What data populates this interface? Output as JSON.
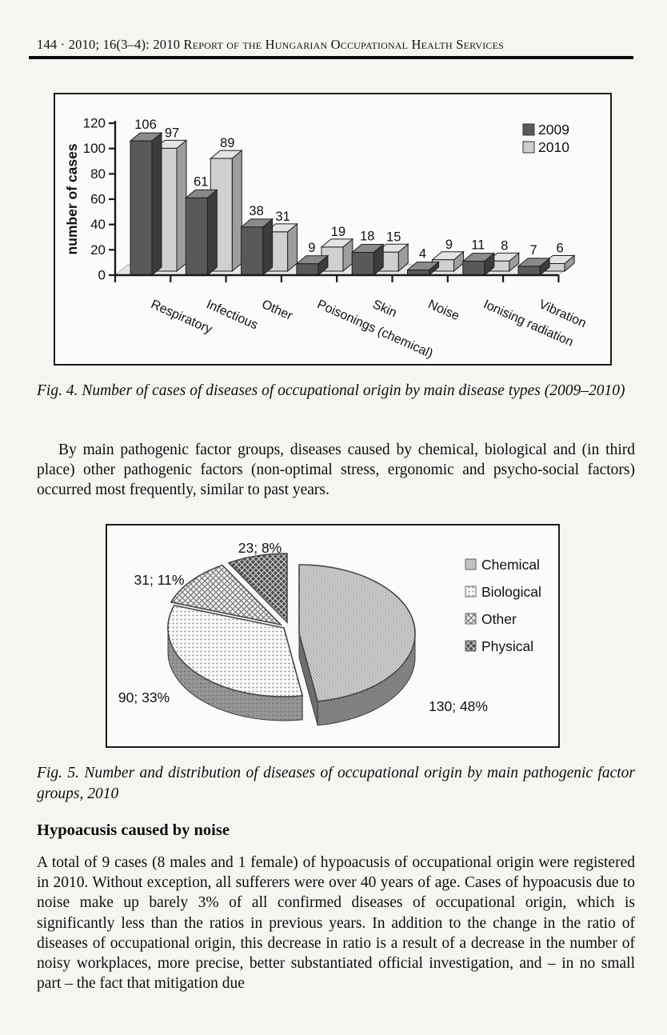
{
  "header": {
    "page_info": "144 · 2010; 16(3–4): ",
    "title": "2010 Report of the Hungarian Occupational Health Services"
  },
  "figure4": {
    "caption": "Fig. 4. Number of cases of diseases of occupational origin by main disease types (2009–2010)"
  },
  "paragraph1": "By main pathogenic factor groups, diseases caused by chemical, biological and (in third place) other pathogenic factors (non-optimal stress, ergonomic and psycho-social factors) occurred most frequently, similar to past years.",
  "figure5": {
    "caption": "Fig. 5. Number and distribution of diseases of occupational origin by main pathogenic factor groups, 2010"
  },
  "section": {
    "heading": "Hypoacusis caused by noise",
    "body": "A total of 9 cases (8 males and 1 female) of hypoacusis of occupational origin were registered in 2010. Without exception, all sufferers were over 40 years of age. Cases of hypoacusis due to noise make up barely 3% of all confirmed diseases of occupational origin, which is significantly less than the ratios in previous years. In addition to the change in the ratio of diseases of occupational origin, this decrease in ratio is a result of a decrease in the number of noisy workplaces, more precise, better substantiated official investigation, and – in no small part – the fact that mitigation due"
  },
  "chart_data": [
    {
      "type": "bar",
      "style": "3d-clustered-column",
      "categories": [
        "Respiratory",
        "Infectious",
        "Other",
        "Poisonings (chemical)",
        "Skin",
        "Noise",
        "Ionising radiation",
        "Vibration"
      ],
      "series": [
        {
          "name": "2009",
          "values": [
            106,
            61,
            38,
            9,
            18,
            4,
            11,
            7
          ],
          "color": "#595959"
        },
        {
          "name": "2010",
          "values": [
            97,
            89,
            31,
            19,
            15,
            9,
            8,
            6
          ],
          "color": "#cdcdcd"
        }
      ],
      "title": "",
      "xlabel": "",
      "ylabel": "number of cases",
      "ylim": [
        0,
        120
      ],
      "ytick_step": 20,
      "grid": false,
      "legend_position": "top-right"
    },
    {
      "type": "pie",
      "style": "3d-exploded",
      "start_angle": "top",
      "direction": "clockwise",
      "slices": [
        {
          "label": "Chemical",
          "value": 130,
          "percent": 48,
          "data_label": "130; 48%",
          "pattern": "fine-halftone-light"
        },
        {
          "label": "Biological",
          "value": 90,
          "percent": 33,
          "data_label": "90; 33%",
          "pattern": "dot-grid-white"
        },
        {
          "label": "Other",
          "value": 31,
          "percent": 11,
          "data_label": "31; 11%",
          "pattern": "diamond-lattice-light"
        },
        {
          "label": "Physical",
          "value": 23,
          "percent": 8,
          "data_label": "23; 8%",
          "pattern": "diamond-lattice-dark"
        }
      ],
      "legend_position": "right"
    }
  ],
  "colors": {
    "page_background": "#f5f5f2",
    "text": "#0e0e0e",
    "bar_2009": "#595959",
    "bar_2010": "#cdcdcd",
    "chart_border": "#1c1c1c"
  }
}
